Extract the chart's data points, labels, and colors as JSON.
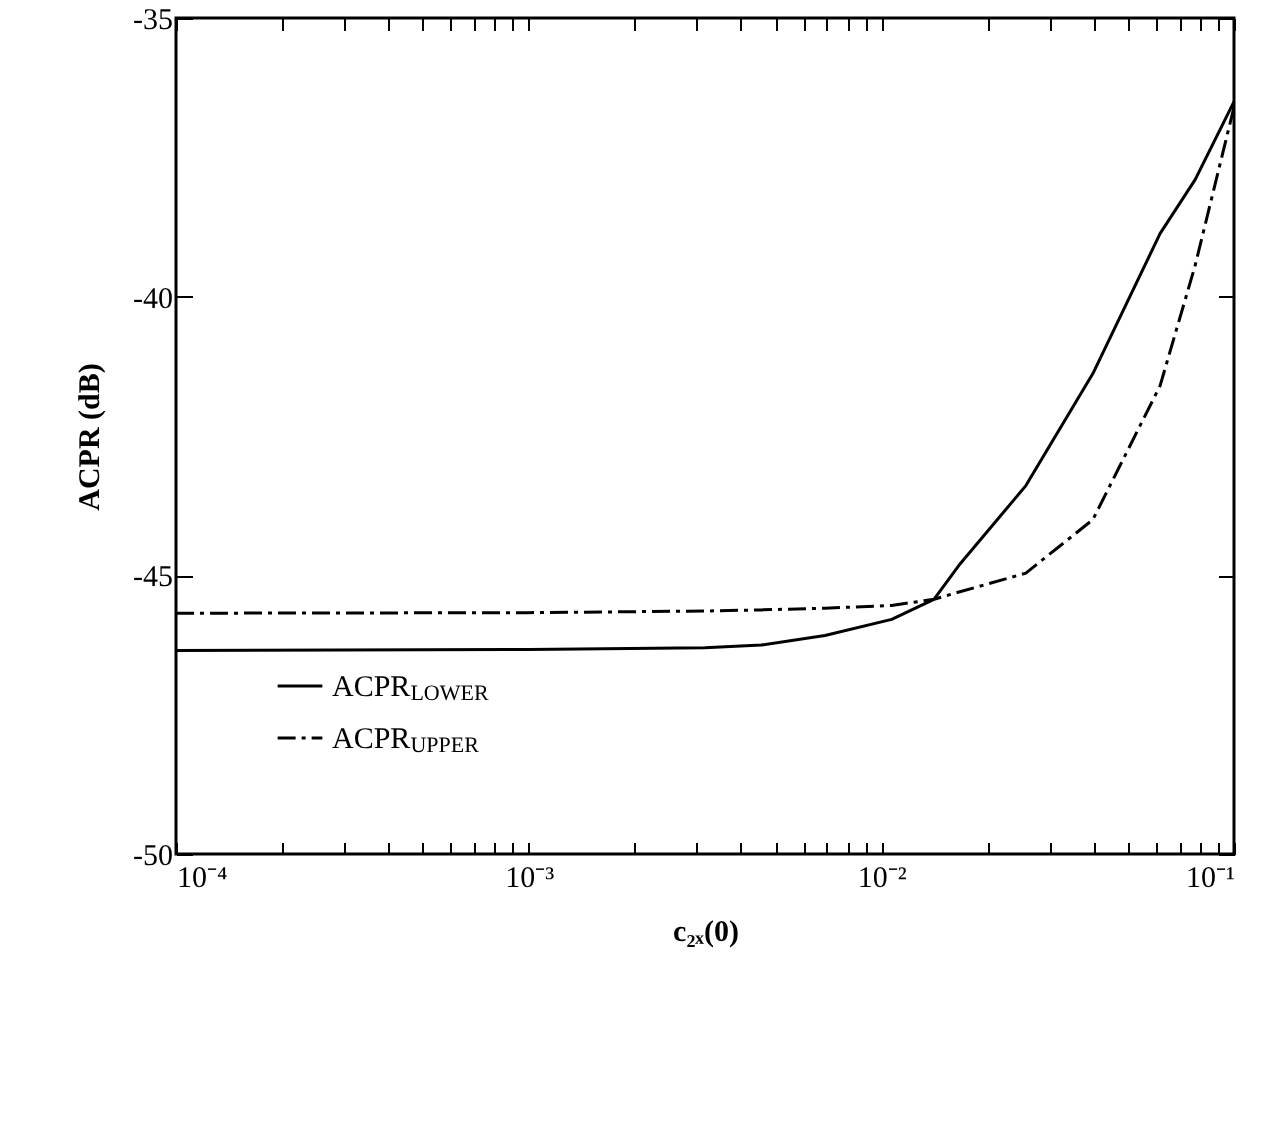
{
  "chart_data": {
    "type": "line",
    "xlabel": "c₂ₓ(0)",
    "ylabel": "ACPR (dB)",
    "log": "x",
    "legend": "bottom left",
    "grid": false,
    "x": [
      0.0001,
      0.001,
      0.00316,
      0.00457,
      0.00692,
      0.0107,
      0.0141,
      0.0166,
      0.0257,
      0.0398,
      0.0617,
      0.0776,
      0.1
    ],
    "xlim": [
      0.0001,
      0.1
    ],
    "xticks": [
      {
        "value": 0.0001,
        "label": "10⁻⁴"
      },
      {
        "value": 0.0002,
        "label": null
      },
      {
        "value": 0.0003,
        "label": null
      },
      {
        "value": 0.0004,
        "label": null
      },
      {
        "value": 0.0005,
        "label": null
      },
      {
        "value": 0.0006,
        "label": null
      },
      {
        "value": 0.0007,
        "label": null
      },
      {
        "value": 0.0008,
        "label": null
      },
      {
        "value": 0.0009,
        "label": null
      },
      {
        "value": 0.001,
        "label": "10⁻³"
      },
      {
        "value": 0.002,
        "label": null
      },
      {
        "value": 0.003,
        "label": null
      },
      {
        "value": 0.004,
        "label": null
      },
      {
        "value": 0.005,
        "label": null
      },
      {
        "value": 0.006,
        "label": null
      },
      {
        "value": 0.007,
        "label": null
      },
      {
        "value": 0.008,
        "label": null
      },
      {
        "value": 0.009,
        "label": null
      },
      {
        "value": 0.01,
        "label": "10⁻²"
      },
      {
        "value": 0.02,
        "label": null
      },
      {
        "value": 0.03,
        "label": null
      },
      {
        "value": 0.04,
        "label": null
      },
      {
        "value": 0.05,
        "label": null
      },
      {
        "value": 0.06,
        "label": null
      },
      {
        "value": 0.07,
        "label": null
      },
      {
        "value": 0.08,
        "label": null
      },
      {
        "value": 0.09,
        "label": null
      },
      {
        "value": 0.1,
        "label": "10⁻¹"
      }
    ],
    "ylim": [
      -50,
      -35
    ],
    "yticks": [
      -50,
      -45,
      -40,
      -35
    ],
    "series": [
      {
        "name": "ACPR$_{LOWER}$",
        "color": "#000000",
        "line_style": "solid",
        "values": [
          -46.35,
          -46.33,
          -46.3,
          -46.25,
          -46.08,
          -45.79,
          -45.43,
          -44.82,
          -43.39,
          -41.38,
          -38.87,
          -37.9,
          -36.5
        ]
      },
      {
        "name": "ACPR$_{UPPER}$",
        "color": "#000000",
        "line_style": "dashdot",
        "values": [
          -45.68,
          -45.67,
          -45.64,
          -45.62,
          -45.59,
          -45.54,
          -45.43,
          -45.3,
          -44.96,
          -44.0,
          -41.6,
          -39.44,
          -36.6
        ]
      }
    ]
  }
}
